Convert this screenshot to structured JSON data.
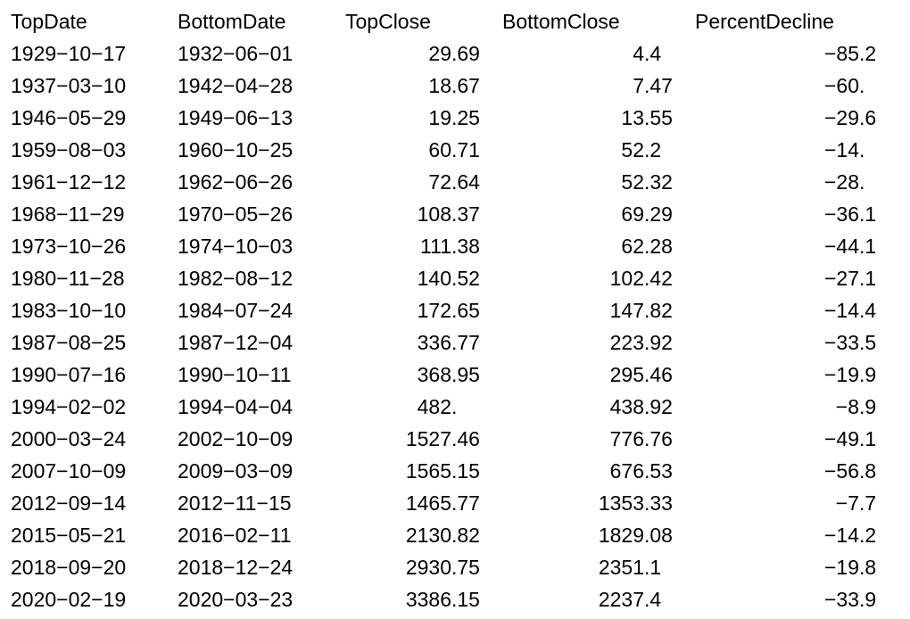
{
  "table": {
    "headers": [
      "TopDate",
      "BottomDate",
      "TopClose",
      "BottomClose",
      "PercentDecline"
    ],
    "rows": [
      [
        "1929−10−17",
        "1932−06−01",
        "29.69",
        "4.4",
        "−85.2"
      ],
      [
        "1937−03−10",
        "1942−04−28",
        "18.67",
        "7.47",
        "−60."
      ],
      [
        "1946−05−29",
        "1949−06−13",
        "19.25",
        "13.55",
        "−29.6"
      ],
      [
        "1959−08−03",
        "1960−10−25",
        "60.71",
        "52.2",
        "−14."
      ],
      [
        "1961−12−12",
        "1962−06−26",
        "72.64",
        "52.32",
        "−28."
      ],
      [
        "1968−11−29",
        "1970−05−26",
        "108.37",
        "69.29",
        "−36.1"
      ],
      [
        "1973−10−26",
        "1974−10−03",
        "111.38",
        "62.28",
        "−44.1"
      ],
      [
        "1980−11−28",
        "1982−08−12",
        "140.52",
        "102.42",
        "−27.1"
      ],
      [
        "1983−10−10",
        "1984−07−24",
        "172.65",
        "147.82",
        "−14.4"
      ],
      [
        "1987−08−25",
        "1987−12−04",
        "336.77",
        "223.92",
        "−33.5"
      ],
      [
        "1990−07−16",
        "1990−10−11",
        "368.95",
        "295.46",
        "−19.9"
      ],
      [
        "1994−02−02",
        "1994−04−04",
        "482.",
        "438.92",
        "−8.9"
      ],
      [
        "2000−03−24",
        "2002−10−09",
        "1527.46",
        "776.76",
        "−49.1"
      ],
      [
        "2007−10−09",
        "2009−03−09",
        "1565.15",
        "676.53",
        "−56.8"
      ],
      [
        "2012−09−14",
        "2012−11−15",
        "1465.77",
        "1353.33",
        "−7.7"
      ],
      [
        "2015−05−21",
        "2016−02−11",
        "2130.82",
        "1829.08",
        "−14.2"
      ],
      [
        "2018−09−20",
        "2018−12−24",
        "2930.75",
        "2351.1",
        "−19.8"
      ],
      [
        "2020−02−19",
        "2020−03−23",
        "3386.15",
        "2237.4",
        "−33.9"
      ]
    ]
  }
}
